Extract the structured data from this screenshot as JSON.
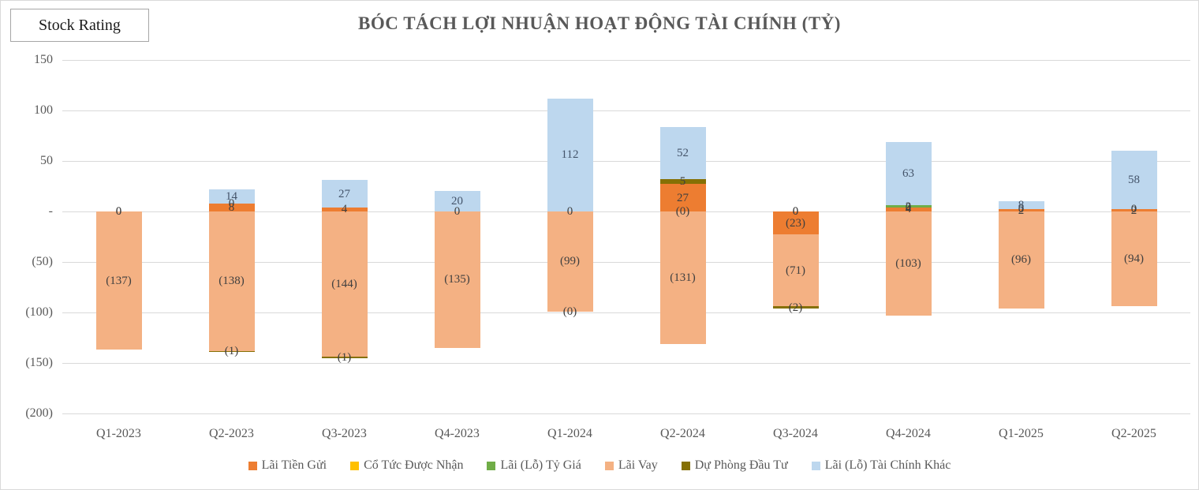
{
  "header": {
    "stock_rating_label": "Stock Rating"
  },
  "chart_data": {
    "type": "bar",
    "stacked": true,
    "title": "BÓC TÁCH LỢI NHUẬN HOẠT ĐỘNG TÀI CHÍNH (TỶ)",
    "categories": [
      "Q1-2023",
      "Q2-2023",
      "Q3-2023",
      "Q4-2023",
      "Q1-2024",
      "Q2-2024",
      "Q3-2024",
      "Q4-2024",
      "Q1-2025",
      "Q2-2025"
    ],
    "ylim": [
      -200,
      150
    ],
    "grid": true,
    "legend_position": "bottom",
    "yticks": [
      {
        "value": 150,
        "label": "150"
      },
      {
        "value": 100,
        "label": "100"
      },
      {
        "value": 50,
        "label": "50"
      },
      {
        "value": 0,
        "label": "-"
      },
      {
        "value": -50,
        "label": "(50)"
      },
      {
        "value": -100,
        "label": "(100)"
      },
      {
        "value": -150,
        "label": "(150)"
      },
      {
        "value": -200,
        "label": "(200)"
      }
    ],
    "series": [
      {
        "id": "lai-tien-gui",
        "name": "Lãi Tiền Gửi",
        "color": "#ED7D31",
        "label_color": "#3f3f3f",
        "values": [
          0,
          8,
          4,
          0,
          0,
          27,
          -23,
          4,
          2,
          2
        ],
        "labels": [
          "0",
          "8",
          "4",
          "0",
          "0",
          "27",
          "(23)",
          "4",
          "2",
          "2"
        ]
      },
      {
        "id": "co-tuc-duoc-nhan",
        "name": "Cổ Tức Được Nhận",
        "color": "#FFC000",
        "label_color": "#3f3f3f",
        "values": [
          0,
          0,
          0,
          0,
          0,
          0,
          0,
          0,
          0,
          0
        ],
        "labels": [
          null,
          "0",
          null,
          null,
          null,
          null,
          "0",
          "0",
          "0",
          "0"
        ]
      },
      {
        "id": "lai-lo-ty-gia",
        "name": "Lãi (Lỗ) Tỷ Giá",
        "color": "#70AD47",
        "label_color": "#3f3f3f",
        "values": [
          0,
          0,
          0,
          0,
          0,
          0,
          0,
          2,
          0,
          0
        ],
        "labels": [
          "0",
          null,
          null,
          null,
          null,
          "(0)",
          "0",
          "2",
          null,
          null
        ]
      },
      {
        "id": "lai-vay",
        "name": "Lãi Vay",
        "color": "#F4B183",
        "label_color": "#3f3f3f",
        "values": [
          -137,
          -138,
          -144,
          -135,
          -99,
          -131,
          -71,
          -103,
          -96,
          -94
        ],
        "labels": [
          "(137)",
          "(138)",
          "(144)",
          "(135)",
          "(99)",
          "(131)",
          "(71)",
          "(103)",
          "(96)",
          "(94)"
        ]
      },
      {
        "id": "du-phong-dau-tu",
        "name": "Dự Phòng Đầu Tư",
        "color": "#857005",
        "label_color": "#3f3f3f",
        "values": [
          0,
          -1,
          -1,
          0,
          0,
          5,
          -2,
          0,
          0,
          0
        ],
        "labels": [
          null,
          "(1)",
          "(1)",
          null,
          "(0)",
          "5",
          "(2)",
          null,
          null,
          null
        ]
      },
      {
        "id": "lai-lo-tai-chinh-khac",
        "name": "Lãi (Lỗ) Tài Chính Khác",
        "color": "#BDD7EE",
        "label_color": "#44546A",
        "values": [
          0,
          14,
          27,
          20,
          112,
          52,
          0,
          63,
          8,
          58
        ],
        "labels": [
          null,
          "14",
          "27",
          "20",
          "112",
          "52",
          null,
          "63",
          "8",
          "58"
        ]
      }
    ]
  }
}
